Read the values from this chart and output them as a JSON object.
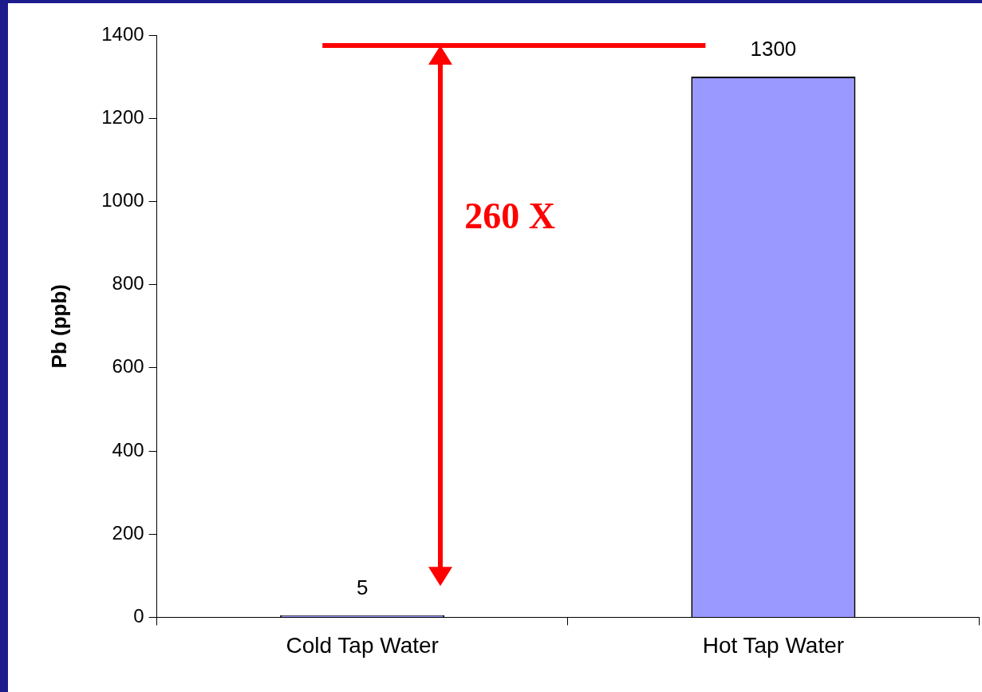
{
  "chart_data": {
    "type": "bar",
    "ylabel": "Pb (ppb)",
    "categories": [
      "Cold Tap Water",
      "Hot Tap Water"
    ],
    "values": [
      5,
      1300
    ],
    "colors": [
      "#9999ff",
      "#9999ff"
    ],
    "ylim": [
      0,
      1400
    ],
    "yticks": [
      0,
      200,
      400,
      600,
      800,
      1000,
      1200,
      1400
    ],
    "grid": false,
    "legend": false,
    "data_labels": true,
    "ref_lines": [
      {
        "axis": "y",
        "value": 1375,
        "color": "#ff0000"
      }
    ],
    "annotations": [
      "260 X"
    ]
  }
}
